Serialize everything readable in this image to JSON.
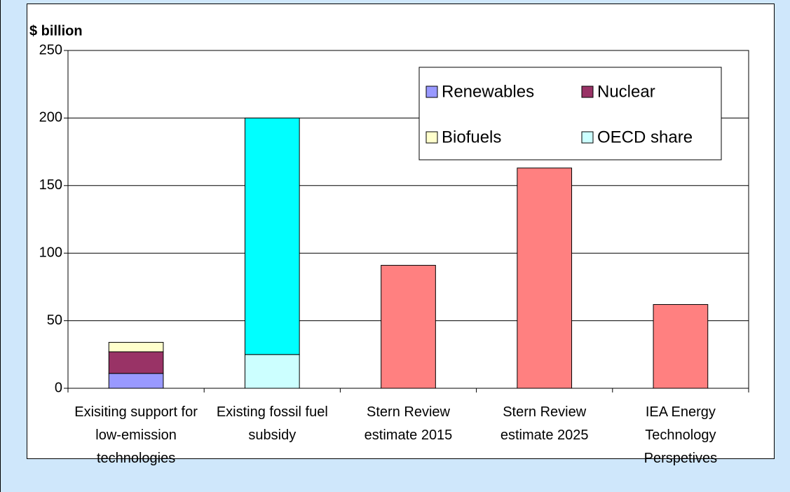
{
  "chart_data": {
    "type": "bar",
    "stacked": true,
    "y_label": "$ billion",
    "categories": [
      "Exisiting support for low-emission technologies",
      "Existing fossil fuel subsidy",
      "Stern Review estimate 2015",
      "Stern Review estimate 2025",
      "IEA Energy Technology Perspetives"
    ],
    "series": [
      {
        "name": "Renewables",
        "color": "#9999ff",
        "values": [
          11,
          null,
          null,
          null,
          null
        ]
      },
      {
        "name": "Nuclear",
        "color": "#993366",
        "values": [
          16,
          null,
          null,
          null,
          null
        ]
      },
      {
        "name": "Biofuels",
        "color": "#ffffcc",
        "values": [
          7,
          null,
          null,
          null,
          null
        ]
      },
      {
        "name": "OECD share",
        "color": "#ccffff",
        "values": [
          null,
          25,
          null,
          null,
          null
        ]
      },
      {
        "color": "#00ffff",
        "values": [
          null,
          175,
          null,
          null,
          null
        ]
      },
      {
        "color": "#ff8080",
        "values": [
          null,
          null,
          91,
          163,
          62
        ]
      }
    ],
    "ylim": [
      0,
      250
    ],
    "yticks": [
      0,
      50,
      100,
      150,
      200,
      250
    ],
    "grid": true,
    "legend": "upper right"
  }
}
